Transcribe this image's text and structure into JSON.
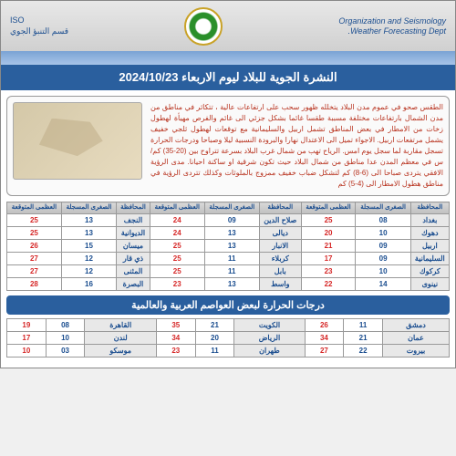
{
  "header": {
    "org_en": "Organization and Seismology",
    "dept_en": "Weather Forecasting Dept.",
    "org_ar": "قسم التنبؤ الجوي",
    "iso": "ISO"
  },
  "title": "النشرة الجوية للبلاد ليوم الاربعاء  2024/10/23",
  "forecast": "الطقس صحو في عموم مدن البلاد يتخلله ظهور سحب على ارتفاعات عالية ، تتكاثر في مناطق من مدن الشمال بارتفاعات مختلفة مسببة طقسا غائما بشكل جزئي الى غائم والفرص مهيأة لهطول زخات من الامطار في بعض المناطق تشمل اربيل والسليمانية مع توقعات لهطول ثلجي خفيف يشمل مرتفعات اربيل. الاجواء تميل الى الاعتدال نهارا والبرودة النسبية ليلا وصباحا ودرجات الحرارة تسجل مقاربة لما سجل يوم امس. الرياح تهب من شمال غرب البلاد بسرعة تتراوح بين (20-35) كم/س في معظم المدن عدا مناطق من شمال البلاد حيث تكون شرقية او ساكنة احيانا. مدى الرؤية الافقي يتردى صباحا الى (6-8) كم لتشكل ضباب خفيف ممزوج بالملوثات وكذلك تتردى الرؤية في مناطق هطول الامطار الى (4-5) كم",
  "th": {
    "gov": "المحافظة",
    "low_r": "الصغرى المسجلة",
    "low_e": "الصغرى المتوقعة",
    "high_e": "العظمى المتوقعة"
  },
  "iraq": [
    {
      "g": "بغداد",
      "lr": "08",
      "le": "25",
      "g2": "صلاح الدين",
      "lr2": "09",
      "le2": "24",
      "g3": "النجف",
      "lr3": "13",
      "le3": "25"
    },
    {
      "g": "دهوك",
      "lr": "10",
      "le": "20",
      "g2": "ديالى",
      "lr2": "13",
      "le2": "24",
      "g3": "الديوانية",
      "lr3": "13",
      "le3": "25"
    },
    {
      "g": "اربيل",
      "lr": "09",
      "le": "21",
      "g2": "الانبار",
      "lr2": "13",
      "le2": "25",
      "g3": "ميسان",
      "lr3": "15",
      "le3": "26"
    },
    {
      "g": "السليمانية",
      "lr": "09",
      "le": "17",
      "g2": "كربلاء",
      "lr2": "11",
      "le2": "25",
      "g3": "ذي قار",
      "lr3": "12",
      "le3": "27"
    },
    {
      "g": "كركوك",
      "lr": "10",
      "le": "23",
      "g2": "بابل",
      "lr2": "11",
      "le2": "25",
      "g3": "المثنى",
      "lr3": "12",
      "le3": "27"
    },
    {
      "g": "نينوى",
      "lr": "14",
      "le": "22",
      "g2": "واسط",
      "lr2": "13",
      "le2": "23",
      "g3": "البصرة",
      "lr3": "16",
      "le3": "28"
    }
  ],
  "world_title": "درجات الحرارة لبعض العواصم العربية والعالمية",
  "world": [
    {
      "c1": "دمشق",
      "l1": "11",
      "h1": "26",
      "c2": "الكويت",
      "l2": "21",
      "h2": "35",
      "c3": "القاهرة",
      "l3": "08",
      "h3": "19"
    },
    {
      "c1": "عمان",
      "l1": "21",
      "h1": "34",
      "c2": "الرياض",
      "l2": "20",
      "h2": "34",
      "c3": "لندن",
      "l3": "10",
      "h3": "17"
    },
    {
      "c1": "بيروت",
      "l1": "22",
      "h1": "27",
      "c2": "طهران",
      "l2": "11",
      "h2": "23",
      "c3": "موسكو",
      "l3": "03",
      "h3": "10"
    }
  ],
  "colors": {
    "blue": "#1a4d8f",
    "red": "#d62828",
    "header_bg": "#2a5f9e"
  }
}
